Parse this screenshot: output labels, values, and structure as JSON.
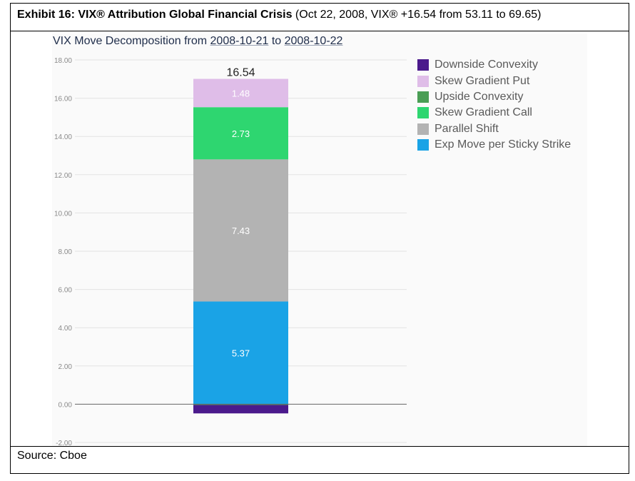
{
  "header": {
    "bold": "Exhibit 16: VIX® Attribution Global Financial Crisis",
    "rest": " (Oct 22, 2008, VIX® +16.54 from 53.11 to 69.65)"
  },
  "footer": {
    "source": "Source: Cboe"
  },
  "chart_data": {
    "type": "bar",
    "stacked": true,
    "title_prefix": "VIX Move Decomposition from ",
    "title_date1": "2008-10-21",
    "title_mid": " to ",
    "title_date2": "2008-10-22",
    "total_label": "16.54",
    "ylim": [
      -2,
      18
    ],
    "yticks": [
      "18.00",
      "16.00",
      "14.00",
      "12.00",
      "10.00",
      "8.00",
      "6.00",
      "4.00",
      "2.00",
      "0.00",
      "-2.00"
    ],
    "ytick_values": [
      18,
      16,
      14,
      12,
      10,
      8,
      6,
      4,
      2,
      0,
      -2
    ],
    "grid": true,
    "legend_position": "right",
    "series": [
      {
        "name": "Downside Convexity",
        "value": -0.44,
        "color": "#4b1a8c",
        "label": ""
      },
      {
        "name": "Skew Gradient Put",
        "value": 1.48,
        "color": "#dfbde8",
        "label": "1.48"
      },
      {
        "name": "Upside Convexity",
        "value": -0.04,
        "color": "#4a9e55",
        "label": ""
      },
      {
        "name": "Skew Gradient Call",
        "value": 2.73,
        "color": "#2ed670",
        "label": "2.73"
      },
      {
        "name": "Parallel Shift",
        "value": 7.43,
        "color": "#b3b3b3",
        "label": "7.43"
      },
      {
        "name": "Exp Move per Sticky Strike",
        "value": 5.37,
        "color": "#1aa3e6",
        "label": "5.37"
      }
    ]
  }
}
